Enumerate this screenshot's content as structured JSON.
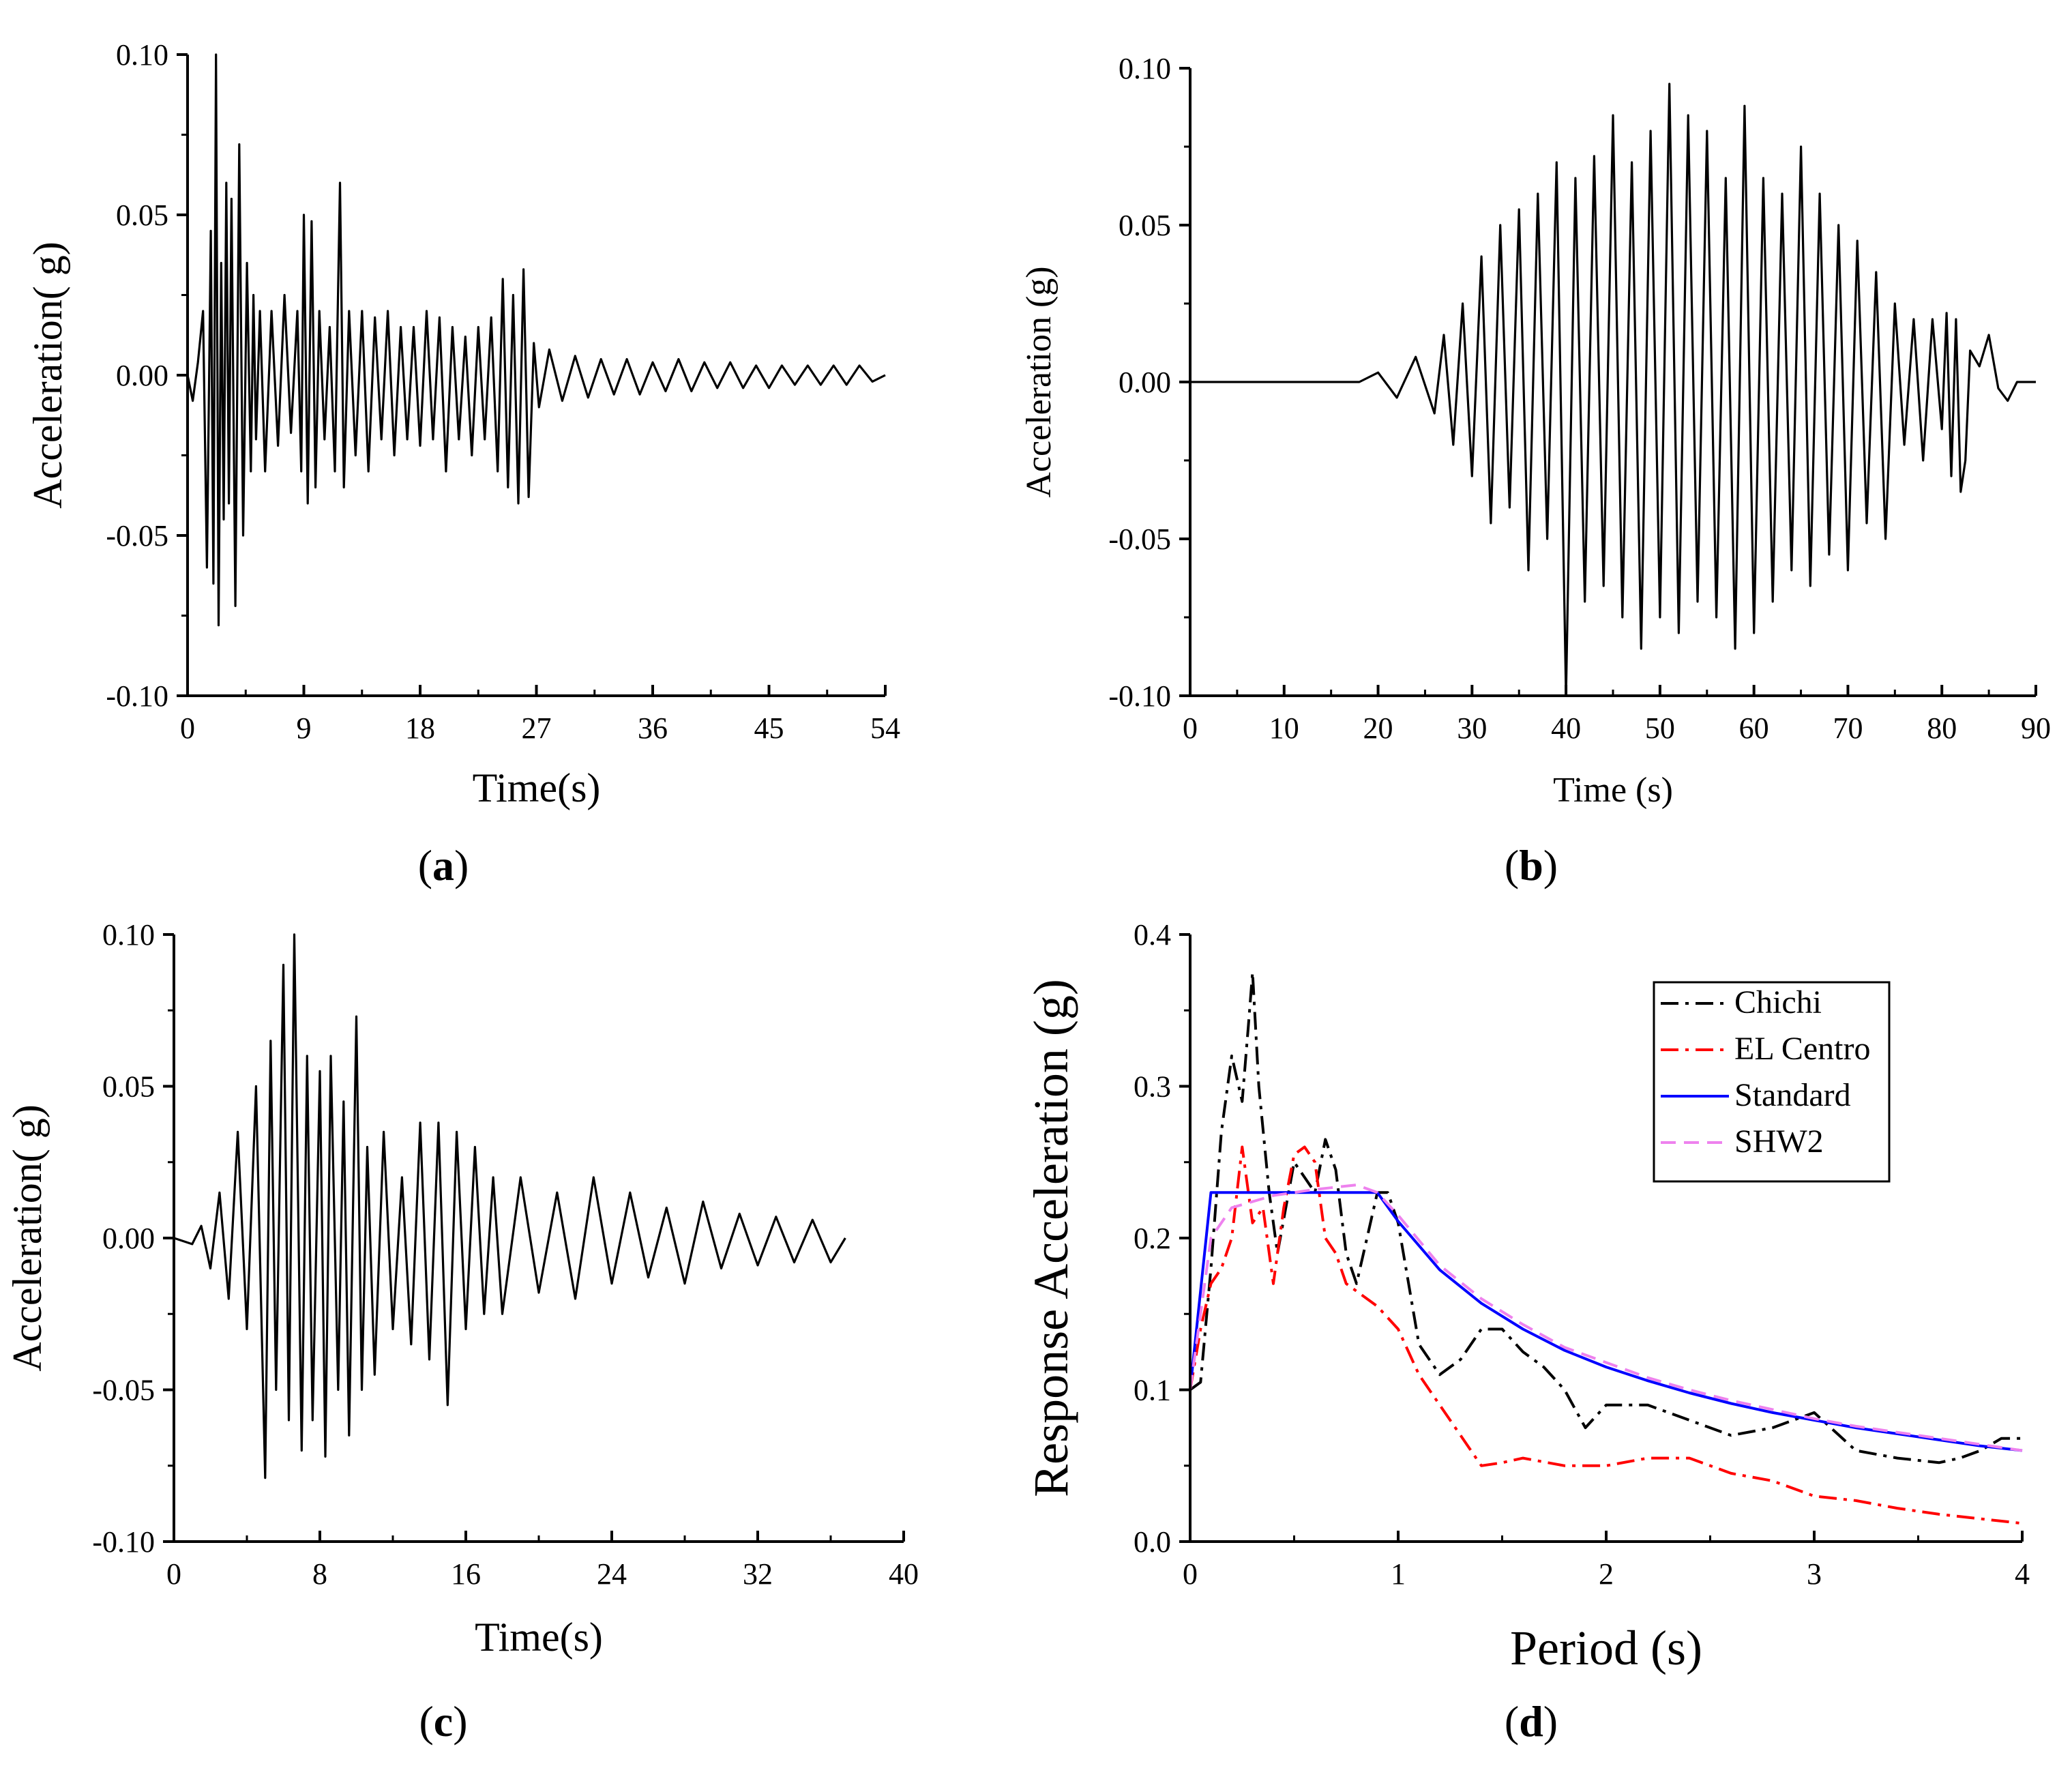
{
  "figure": {
    "panels": [
      {
        "id": "a",
        "label_open": "(",
        "label_letter": "a",
        "label_close": ")"
      },
      {
        "id": "b",
        "label_open": "(",
        "label_letter": "b",
        "label_close": ")"
      },
      {
        "id": "c",
        "label_open": "(",
        "label_letter": "c",
        "label_close": ")"
      },
      {
        "id": "d",
        "label_open": "(",
        "label_letter": "d",
        "label_close": ")"
      }
    ]
  },
  "chart_data": [
    {
      "id": "a",
      "type": "line",
      "title": "",
      "xlabel": "Time(s)",
      "ylabel": "Acceleration(  g)",
      "xlim": [
        0,
        54
      ],
      "ylim": [
        -0.1,
        0.1
      ],
      "xticks": [
        0,
        9,
        18,
        27,
        36,
        45,
        54
      ],
      "xtick_labels": [
        "0",
        "9",
        "18",
        "27",
        "36",
        "45",
        "54"
      ],
      "yticks": [
        -0.1,
        -0.05,
        0.0,
        0.05,
        0.1
      ],
      "ytick_labels": [
        "-0.10",
        "-0.05",
        "0.00",
        "0.05",
        "0.10"
      ],
      "series": [
        {
          "name": "acceleration",
          "color": "#000000",
          "x": [
            0,
            0.4,
            0.8,
            1.2,
            1.5,
            1.8,
            2.0,
            2.2,
            2.4,
            2.6,
            2.8,
            3.0,
            3.2,
            3.4,
            3.7,
            4.0,
            4.3,
            4.6,
            4.9,
            5.1,
            5.3,
            5.6,
            6.0,
            6.5,
            7.0,
            7.5,
            8.0,
            8.5,
            8.8,
            9.0,
            9.3,
            9.6,
            9.9,
            10.2,
            10.6,
            11.0,
            11.4,
            11.8,
            12.1,
            12.5,
            13.0,
            13.5,
            14.0,
            14.5,
            15.0,
            15.5,
            16.0,
            16.5,
            17.0,
            17.5,
            18.0,
            18.5,
            19.0,
            19.5,
            20.0,
            20.5,
            21.0,
            21.5,
            22.0,
            22.5,
            23.0,
            23.5,
            24.0,
            24.4,
            24.8,
            25.2,
            25.6,
            26.0,
            26.4,
            26.8,
            27.2,
            28.0,
            29.0,
            30.0,
            31.0,
            32.0,
            33.0,
            34.0,
            35.0,
            36.0,
            37.0,
            38.0,
            39.0,
            40.0,
            41.0,
            42.0,
            43.0,
            44.0,
            45.0,
            46.0,
            47.0,
            48.0,
            49.0,
            50.0,
            51.0,
            52.0,
            53.0,
            54.0
          ],
          "values": [
            0,
            -0.008,
            0.004,
            0.02,
            -0.06,
            0.045,
            -0.065,
            0.1,
            -0.078,
            0.035,
            -0.045,
            0.06,
            -0.04,
            0.055,
            -0.072,
            0.072,
            -0.05,
            0.035,
            -0.03,
            0.025,
            -0.02,
            0.02,
            -0.03,
            0.02,
            -0.022,
            0.025,
            -0.018,
            0.02,
            -0.03,
            0.05,
            -0.04,
            0.048,
            -0.035,
            0.02,
            -0.02,
            0.015,
            -0.03,
            0.06,
            -0.035,
            0.02,
            -0.025,
            0.02,
            -0.03,
            0.018,
            -0.02,
            0.02,
            -0.025,
            0.015,
            -0.02,
            0.015,
            -0.022,
            0.02,
            -0.02,
            0.018,
            -0.03,
            0.015,
            -0.02,
            0.012,
            -0.025,
            0.015,
            -0.02,
            0.018,
            -0.03,
            0.03,
            -0.035,
            0.025,
            -0.04,
            0.033,
            -0.038,
            0.01,
            -0.01,
            0.008,
            -0.008,
            0.006,
            -0.007,
            0.005,
            -0.006,
            0.005,
            -0.006,
            0.004,
            -0.005,
            0.005,
            -0.005,
            0.004,
            -0.004,
            0.004,
            -0.004,
            0.003,
            -0.004,
            0.003,
            -0.003,
            0.003,
            -0.003,
            0.003,
            -0.003,
            0.003,
            -0.002,
            0
          ]
        }
      ]
    },
    {
      "id": "b",
      "type": "line",
      "title": "",
      "xlabel": "Time (s)",
      "ylabel": "Acceleration (g)",
      "xlim": [
        0,
        90
      ],
      "ylim": [
        -0.1,
        0.1
      ],
      "xticks": [
        0,
        10,
        20,
        30,
        40,
        50,
        60,
        70,
        80,
        90
      ],
      "xtick_labels": [
        "0",
        "10",
        "20",
        "30",
        "40",
        "50",
        "60",
        "70",
        "80",
        "90"
      ],
      "yticks": [
        -0.1,
        -0.05,
        0.0,
        0.05,
        0.1
      ],
      "ytick_labels": [
        "-0.10",
        "-0.05",
        "0.00",
        "0.05",
        "0.10"
      ],
      "series": [
        {
          "name": "acceleration",
          "color": "#000000",
          "x": [
            0,
            18,
            20,
            22,
            24,
            26,
            27,
            28,
            29,
            30,
            31,
            32,
            33,
            34,
            35,
            36,
            37,
            38,
            39,
            40,
            41,
            42,
            43,
            44,
            45,
            46,
            47,
            48,
            49,
            50,
            51,
            52,
            53,
            54,
            55,
            56,
            57,
            58,
            59,
            60,
            61,
            62,
            63,
            64,
            65,
            66,
            67,
            68,
            69,
            70,
            71,
            72,
            73,
            74,
            75,
            76,
            77,
            78,
            79,
            80,
            80.5,
            81,
            81.5,
            82,
            82.5,
            83,
            84,
            85,
            86,
            87,
            88,
            90
          ],
          "values": [
            0,
            0,
            0.003,
            -0.005,
            0.008,
            -0.01,
            0.015,
            -0.02,
            0.025,
            -0.03,
            0.04,
            -0.045,
            0.05,
            -0.04,
            0.055,
            -0.06,
            0.06,
            -0.05,
            0.07,
            -0.1,
            0.065,
            -0.07,
            0.072,
            -0.065,
            0.085,
            -0.075,
            0.07,
            -0.085,
            0.08,
            -0.075,
            0.095,
            -0.08,
            0.085,
            -0.07,
            0.08,
            -0.075,
            0.065,
            -0.085,
            0.088,
            -0.08,
            0.065,
            -0.07,
            0.06,
            -0.06,
            0.075,
            -0.065,
            0.06,
            -0.055,
            0.05,
            -0.06,
            0.045,
            -0.045,
            0.035,
            -0.05,
            0.025,
            -0.02,
            0.02,
            -0.025,
            0.02,
            -0.015,
            0.022,
            -0.03,
            0.02,
            -0.035,
            -0.025,
            0.01,
            0.005,
            0.015,
            -0.002,
            -0.006,
            0.0,
            0.0
          ]
        }
      ]
    },
    {
      "id": "c",
      "type": "line",
      "title": "",
      "xlabel": "Time(s)",
      "ylabel": "Acceleration(  g)",
      "xlim": [
        0,
        40
      ],
      "ylim": [
        -0.1,
        0.1
      ],
      "xticks": [
        0,
        8,
        16,
        24,
        32,
        40
      ],
      "xtick_labels": [
        "0",
        "8",
        "16",
        "24",
        "32",
        "40"
      ],
      "yticks": [
        -0.1,
        -0.05,
        0.0,
        0.05,
        0.1
      ],
      "ytick_labels": [
        "-0.10",
        "-0.05",
        "0.00",
        "0.05",
        "0.10"
      ],
      "series": [
        {
          "name": "acceleration",
          "color": "#000000",
          "x": [
            0,
            1.0,
            1.5,
            2.0,
            2.5,
            3.0,
            3.5,
            4.0,
            4.5,
            5.0,
            5.3,
            5.6,
            6.0,
            6.3,
            6.6,
            7.0,
            7.3,
            7.6,
            8.0,
            8.3,
            8.6,
            9.0,
            9.3,
            9.6,
            10.0,
            10.3,
            10.6,
            11.0,
            11.5,
            12.0,
            12.5,
            13.0,
            13.5,
            14.0,
            14.5,
            15.0,
            15.5,
            16.0,
            16.5,
            17.0,
            17.5,
            18.0,
            19.0,
            20.0,
            21.0,
            22.0,
            23.0,
            24.0,
            25.0,
            26.0,
            27.0,
            28.0,
            29.0,
            30.0,
            31.0,
            32.0,
            33.0,
            34.0,
            35.0,
            36.0,
            36.8
          ],
          "values": [
            0,
            -0.002,
            0.004,
            -0.01,
            0.015,
            -0.02,
            0.035,
            -0.03,
            0.05,
            -0.079,
            0.065,
            -0.05,
            0.09,
            -0.06,
            0.1,
            -0.07,
            0.06,
            -0.06,
            0.055,
            -0.072,
            0.06,
            -0.05,
            0.045,
            -0.065,
            0.073,
            -0.05,
            0.03,
            -0.045,
            0.035,
            -0.03,
            0.02,
            -0.035,
            0.038,
            -0.04,
            0.038,
            -0.055,
            0.035,
            -0.03,
            0.03,
            -0.025,
            0.02,
            -0.025,
            0.02,
            -0.018,
            0.015,
            -0.02,
            0.02,
            -0.015,
            0.015,
            -0.013,
            0.01,
            -0.015,
            0.012,
            -0.01,
            0.008,
            -0.009,
            0.007,
            -0.008,
            0.006,
            -0.008,
            0.0
          ]
        }
      ]
    },
    {
      "id": "d",
      "type": "line",
      "title": "",
      "xlabel": "Period (s)",
      "ylabel": "Response Acceleration (g)",
      "xlim": [
        0,
        4
      ],
      "ylim": [
        0.0,
        0.4
      ],
      "xticks": [
        0,
        1,
        2,
        3,
        4
      ],
      "xtick_labels": [
        "0",
        "1",
        "2",
        "3",
        "4"
      ],
      "yticks": [
        0.0,
        0.1,
        0.2,
        0.3,
        0.4
      ],
      "ytick_labels": [
        "0.0",
        "0.1",
        "0.2",
        "0.3",
        "0.4"
      ],
      "legend_position": "top-right",
      "series": [
        {
          "name": "Chichi",
          "color": "#000000",
          "dash": "dashdot",
          "x": [
            0,
            0.05,
            0.1,
            0.15,
            0.2,
            0.25,
            0.28,
            0.3,
            0.33,
            0.38,
            0.42,
            0.46,
            0.5,
            0.55,
            0.6,
            0.65,
            0.7,
            0.75,
            0.8,
            0.85,
            0.9,
            0.95,
            1.0,
            1.05,
            1.1,
            1.2,
            1.3,
            1.4,
            1.5,
            1.6,
            1.7,
            1.8,
            1.9,
            2.0,
            2.2,
            2.4,
            2.6,
            2.8,
            3.0,
            3.2,
            3.4,
            3.6,
            3.7,
            3.8,
            3.9,
            4.0
          ],
          "values": [
            0.1,
            0.105,
            0.18,
            0.27,
            0.32,
            0.29,
            0.34,
            0.375,
            0.3,
            0.23,
            0.19,
            0.22,
            0.25,
            0.24,
            0.23,
            0.265,
            0.245,
            0.19,
            0.17,
            0.2,
            0.23,
            0.23,
            0.21,
            0.17,
            0.13,
            0.11,
            0.12,
            0.14,
            0.14,
            0.125,
            0.115,
            0.1,
            0.075,
            0.09,
            0.09,
            0.08,
            0.07,
            0.075,
            0.085,
            0.06,
            0.055,
            0.052,
            0.055,
            0.06,
            0.068,
            0.068
          ]
        },
        {
          "name": "EL Centro",
          "color": "#ff0000",
          "dash": "dashdot",
          "x": [
            0,
            0.05,
            0.1,
            0.15,
            0.2,
            0.25,
            0.3,
            0.35,
            0.4,
            0.45,
            0.5,
            0.55,
            0.6,
            0.65,
            0.7,
            0.75,
            0.8,
            0.9,
            1.0,
            1.1,
            1.2,
            1.3,
            1.4,
            1.5,
            1.6,
            1.8,
            2.0,
            2.2,
            2.4,
            2.6,
            2.8,
            3.0,
            3.2,
            3.4,
            3.6,
            3.8,
            4.0
          ],
          "values": [
            0.1,
            0.14,
            0.17,
            0.18,
            0.2,
            0.26,
            0.21,
            0.22,
            0.17,
            0.22,
            0.255,
            0.26,
            0.25,
            0.2,
            0.19,
            0.17,
            0.165,
            0.155,
            0.14,
            0.11,
            0.09,
            0.07,
            0.05,
            0.052,
            0.055,
            0.05,
            0.05,
            0.055,
            0.055,
            0.045,
            0.04,
            0.03,
            0.027,
            0.022,
            0.018,
            0.015,
            0.012
          ]
        },
        {
          "name": "Standard",
          "color": "#0000ff",
          "dash": "solid",
          "x": [
            0,
            0.1,
            0.9,
            1.0,
            1.2,
            1.4,
            1.6,
            1.8,
            2.0,
            2.2,
            2.4,
            2.6,
            2.8,
            3.0,
            3.2,
            3.4,
            3.6,
            3.8,
            4.0
          ],
          "values": [
            0.1,
            0.23,
            0.23,
            0.211,
            0.179,
            0.157,
            0.14,
            0.126,
            0.115,
            0.106,
            0.098,
            0.091,
            0.085,
            0.08,
            0.075,
            0.071,
            0.067,
            0.063,
            0.06
          ]
        },
        {
          "name": "SHW2",
          "color": "#ee82ee",
          "dash": "dashed",
          "x": [
            0,
            0.1,
            0.2,
            0.4,
            0.6,
            0.8,
            0.9,
            1.0,
            1.2,
            1.4,
            1.6,
            1.8,
            2.0,
            2.2,
            2.4,
            2.6,
            2.8,
            3.0,
            3.2,
            3.4,
            3.6,
            3.8,
            4.0
          ],
          "values": [
            0.1,
            0.2,
            0.22,
            0.228,
            0.232,
            0.235,
            0.23,
            0.215,
            0.182,
            0.16,
            0.143,
            0.128,
            0.118,
            0.108,
            0.1,
            0.093,
            0.087,
            0.081,
            0.076,
            0.072,
            0.068,
            0.064,
            0.06
          ]
        }
      ]
    }
  ]
}
